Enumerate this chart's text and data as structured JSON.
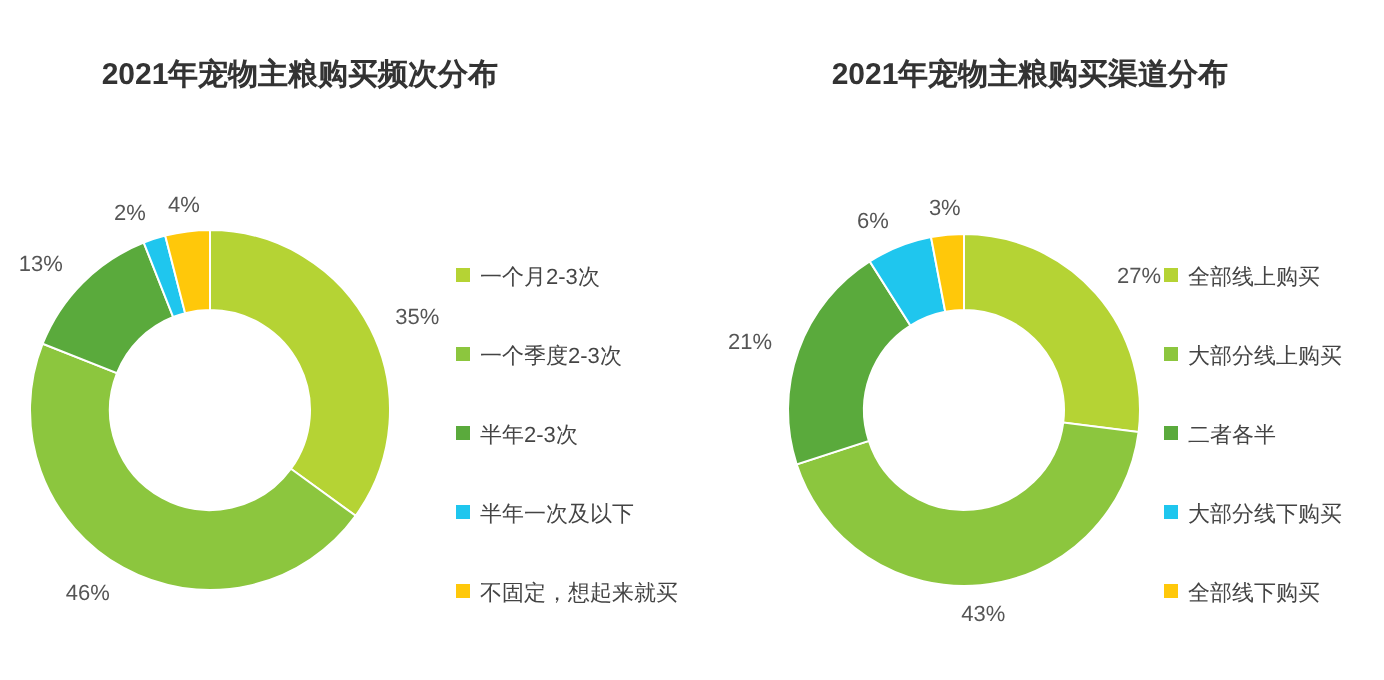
{
  "chart_data": [
    {
      "type": "donut",
      "title": "2021年宠物主粮购买频次分布",
      "categories": [
        "一个月2-3次",
        "一个季度2-3次",
        "半年2-3次",
        "半年一次及以下",
        "不固定，想起来就买"
      ],
      "values": [
        35,
        46,
        13,
        2,
        4
      ],
      "value_labels": [
        "35%",
        "46%",
        "13%",
        "2%",
        "4%"
      ],
      "colors": [
        "#b5d334",
        "#8cc63e",
        "#5aaa3c",
        "#1fc6ee",
        "#ffc80a"
      ],
      "legend": "right"
    },
    {
      "type": "donut",
      "title": "2021年宠物主粮购买渠道分布",
      "categories": [
        "全部线上购买",
        "大部分线上购买",
        "二者各半",
        "大部分线下购买",
        "全部线下购买"
      ],
      "values": [
        27,
        43,
        21,
        6,
        3
      ],
      "value_labels": [
        "27%",
        "43%",
        "21%",
        "6%",
        "3%"
      ],
      "colors": [
        "#b5d334",
        "#8cc63e",
        "#5aaa3c",
        "#1fc6ee",
        "#ffc80a"
      ],
      "legend": "right"
    }
  ]
}
